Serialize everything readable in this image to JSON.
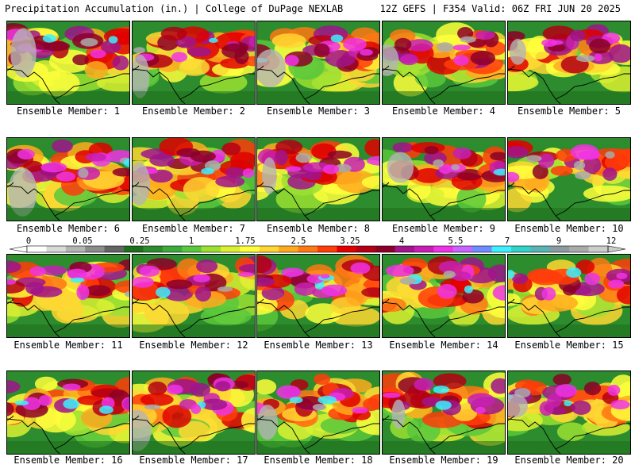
{
  "header": {
    "left": "Precipitation Accumulation (in.) | College of DuPage NEXLAB",
    "right": "12Z GEFS | F354 Valid: 06Z FRI JUN 20 2025"
  },
  "panels": [
    {
      "label": "Ensemble Member: 1"
    },
    {
      "label": "Ensemble Member: 2"
    },
    {
      "label": "Ensemble Member: 3"
    },
    {
      "label": "Ensemble Member: 4"
    },
    {
      "label": "Ensemble Member: 5"
    },
    {
      "label": "Ensemble Member: 6"
    },
    {
      "label": "Ensemble Member: 7"
    },
    {
      "label": "Ensemble Member: 8"
    },
    {
      "label": "Ensemble Member: 9"
    },
    {
      "label": "Ensemble Member: 10"
    },
    {
      "label": "Ensemble Member: 11"
    },
    {
      "label": "Ensemble Member: 12"
    },
    {
      "label": "Ensemble Member: 13"
    },
    {
      "label": "Ensemble Member: 14"
    },
    {
      "label": "Ensemble Member: 15"
    },
    {
      "label": "Ensemble Member: 16"
    },
    {
      "label": "Ensemble Member: 17"
    },
    {
      "label": "Ensemble Member: 18"
    },
    {
      "label": "Ensemble Member: 19"
    },
    {
      "label": "Ensemble Member: 20"
    }
  ],
  "colorbar": {
    "labels": [
      "0",
      "0.05",
      "0.25",
      "1",
      "1.75",
      "2.5",
      "3.25",
      "4",
      "5.5",
      "7",
      "9",
      "12"
    ],
    "colors": [
      "#ffffff",
      "#d9d9d9",
      "#b4b4b4",
      "#8c8c8c",
      "#646464",
      "#1e6e1e",
      "#2d8c2d",
      "#3cab3c",
      "#5ac83c",
      "#9be132",
      "#dcf032",
      "#ffff3c",
      "#ffd732",
      "#ffaa1e",
      "#ff7814",
      "#ff3c0a",
      "#e10000",
      "#b40014",
      "#8c0028",
      "#a0148c",
      "#c81eb4",
      "#f032e6",
      "#c864ff",
      "#6e8cff",
      "#3cf0ff",
      "#32d2c8",
      "#5ab4b4",
      "#8c9ba0",
      "#aaaaaa",
      "#cccccc"
    ]
  }
}
